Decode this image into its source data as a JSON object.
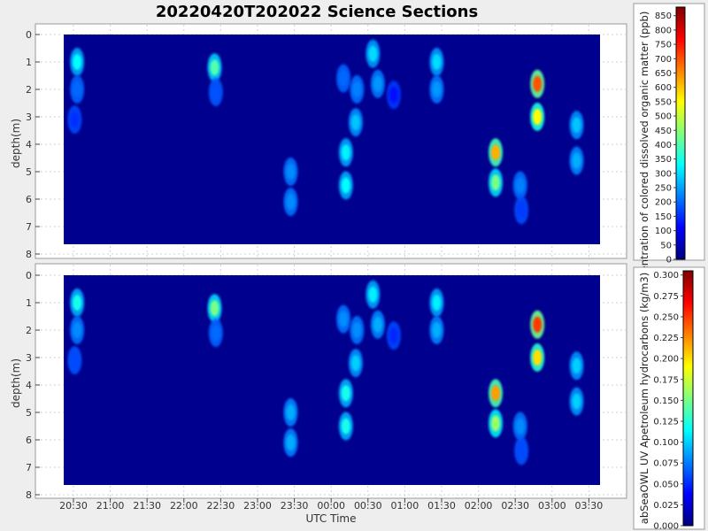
{
  "title": "20220420T202022 Science Sections",
  "x_axis_label": "UTC Time",
  "x_ticks": [
    "20:30",
    "21:00",
    "21:30",
    "22:00",
    "22:30",
    "23:00",
    "23:30",
    "00:00",
    "00:30",
    "01:00",
    "01:30",
    "02:00",
    "02:30",
    "03:00",
    "03:30"
  ],
  "chart_data": [
    {
      "type": "heatmap",
      "ylabel": "depth(m)",
      "y_ticks": [
        "0",
        "1",
        "2",
        "3",
        "4",
        "5",
        "6",
        "7",
        "8"
      ],
      "ylim": [
        0,
        8
      ],
      "y_inverted": true,
      "xlim": [
        "20:13",
        "03:50"
      ],
      "colorbar": {
        "label": "entration of colored dissolved organic matter (ppb)",
        "min": 0,
        "max": 880,
        "ticks": [
          "0",
          "50",
          "100",
          "150",
          "200",
          "250",
          "300",
          "350",
          "400",
          "450",
          "500",
          "550",
          "600",
          "650",
          "700",
          "750",
          "800",
          "850"
        ],
        "colormap": "jet"
      },
      "background_value": 5,
      "hotspots": [
        {
          "time": "20:33",
          "depth": 1.0,
          "value": 330
        },
        {
          "time": "20:33",
          "depth": 2.0,
          "value": 200
        },
        {
          "time": "20:31",
          "depth": 3.1,
          "value": 150
        },
        {
          "time": "22:25",
          "depth": 1.2,
          "value": 400
        },
        {
          "time": "22:26",
          "depth": 2.1,
          "value": 180
        },
        {
          "time": "23:27",
          "depth": 5.0,
          "value": 230
        },
        {
          "time": "23:27",
          "depth": 6.1,
          "value": 230
        },
        {
          "time": "00:12",
          "depth": 4.3,
          "value": 320
        },
        {
          "time": "00:12",
          "depth": 5.5,
          "value": 330
        },
        {
          "time": "00:10",
          "depth": 1.6,
          "value": 200
        },
        {
          "time": "00:21",
          "depth": 2.0,
          "value": 220
        },
        {
          "time": "00:20",
          "depth": 3.2,
          "value": 280
        },
        {
          "time": "00:34",
          "depth": 0.7,
          "value": 300
        },
        {
          "time": "00:38",
          "depth": 1.8,
          "value": 240
        },
        {
          "time": "00:51",
          "depth": 2.2,
          "value": 120
        },
        {
          "time": "01:26",
          "depth": 1.0,
          "value": 300
        },
        {
          "time": "01:26",
          "depth": 2.0,
          "value": 240
        },
        {
          "time": "02:14",
          "depth": 4.3,
          "value": 620
        },
        {
          "time": "02:14",
          "depth": 5.4,
          "value": 430
        },
        {
          "time": "02:34",
          "depth": 5.5,
          "value": 220
        },
        {
          "time": "02:35",
          "depth": 6.4,
          "value": 160
        },
        {
          "time": "02:48",
          "depth": 1.8,
          "value": 700
        },
        {
          "time": "02:48",
          "depth": 3.0,
          "value": 550
        },
        {
          "time": "03:20",
          "depth": 3.3,
          "value": 280
        },
        {
          "time": "03:20",
          "depth": 4.6,
          "value": 260
        }
      ]
    },
    {
      "type": "heatmap",
      "ylabel": "depth(m)",
      "y_ticks": [
        "0",
        "1",
        "2",
        "3",
        "4",
        "5",
        "6",
        "7",
        "8"
      ],
      "ylim": [
        0,
        8
      ],
      "y_inverted": true,
      "xlim": [
        "20:13",
        "03:50"
      ],
      "colorbar": {
        "label": "abSeaOWL UV Apetroleum hydrocarbons (kg/m3)",
        "min": 0,
        "max": 0.305,
        "ticks": [
          "0.000",
          "0.025",
          "0.050",
          "0.075",
          "0.100",
          "0.125",
          "0.150",
          "0.175",
          "0.200",
          "0.225",
          "0.250",
          "0.275",
          "0.300"
        ],
        "colormap": "jet"
      },
      "background_value": 0.002,
      "hotspots": [
        {
          "time": "20:33",
          "depth": 1.0,
          "value": 0.12
        },
        {
          "time": "20:33",
          "depth": 2.0,
          "value": 0.08
        },
        {
          "time": "20:31",
          "depth": 3.1,
          "value": 0.06
        },
        {
          "time": "22:25",
          "depth": 1.2,
          "value": 0.15
        },
        {
          "time": "22:26",
          "depth": 2.1,
          "value": 0.07
        },
        {
          "time": "23:27",
          "depth": 5.0,
          "value": 0.09
        },
        {
          "time": "23:27",
          "depth": 6.1,
          "value": 0.09
        },
        {
          "time": "00:12",
          "depth": 4.3,
          "value": 0.12
        },
        {
          "time": "00:12",
          "depth": 5.5,
          "value": 0.12
        },
        {
          "time": "00:10",
          "depth": 1.6,
          "value": 0.08
        },
        {
          "time": "00:21",
          "depth": 2.0,
          "value": 0.08
        },
        {
          "time": "00:20",
          "depth": 3.2,
          "value": 0.1
        },
        {
          "time": "00:34",
          "depth": 0.7,
          "value": 0.11
        },
        {
          "time": "00:38",
          "depth": 1.8,
          "value": 0.09
        },
        {
          "time": "00:51",
          "depth": 2.2,
          "value": 0.05
        },
        {
          "time": "01:26",
          "depth": 1.0,
          "value": 0.11
        },
        {
          "time": "01:26",
          "depth": 2.0,
          "value": 0.09
        },
        {
          "time": "02:14",
          "depth": 4.3,
          "value": 0.22
        },
        {
          "time": "02:14",
          "depth": 5.4,
          "value": 0.16
        },
        {
          "time": "02:34",
          "depth": 5.5,
          "value": 0.08
        },
        {
          "time": "02:35",
          "depth": 6.4,
          "value": 0.06
        },
        {
          "time": "02:48",
          "depth": 1.8,
          "value": 0.25
        },
        {
          "time": "02:48",
          "depth": 3.0,
          "value": 0.2
        },
        {
          "time": "03:20",
          "depth": 3.3,
          "value": 0.1
        },
        {
          "time": "03:20",
          "depth": 4.6,
          "value": 0.1
        }
      ]
    }
  ]
}
